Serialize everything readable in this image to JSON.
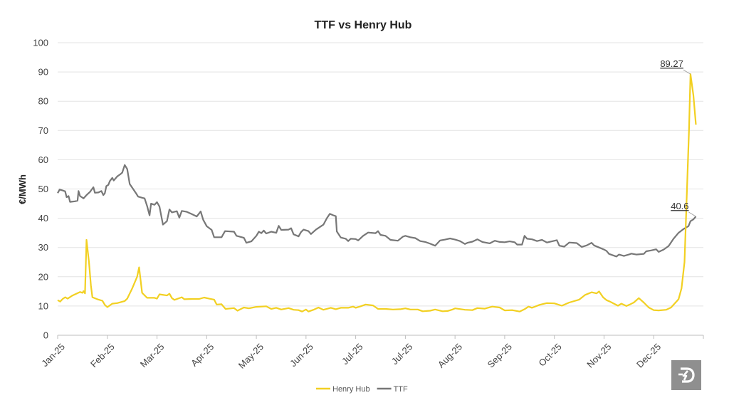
{
  "chart_data": {
    "type": "line",
    "title": "TTF vs Henry Hub",
    "ylabel": "€/MWh",
    "xlabel": "",
    "ylim": [
      0,
      100
    ],
    "yticks": [
      0,
      10,
      20,
      30,
      40,
      50,
      60,
      70,
      80,
      90,
      100
    ],
    "x_tick_labels": [
      "Jan-25",
      "Feb-25",
      "Mar-25",
      "Apr-25",
      "May-25",
      "Jun-25",
      "Jul-25",
      "Jul-25",
      "Aug-25",
      "Sep-25",
      "Oct-25",
      "Nov-25",
      "Dec-25"
    ],
    "grid": true,
    "legend": "bottom",
    "annotations": [
      {
        "series": "Henry Hub",
        "text": "89.27"
      },
      {
        "series": "TTF",
        "text": "40.6"
      }
    ],
    "series": [
      {
        "name": "Henry Hub",
        "color": "#f2d022",
        "points": [
          [
            0.0,
            12
          ],
          [
            0.05,
            11.5
          ],
          [
            0.1,
            12.4
          ],
          [
            0.15,
            13
          ],
          [
            0.2,
            12.5
          ],
          [
            0.3,
            13.6
          ],
          [
            0.45,
            14.8
          ],
          [
            0.5,
            14.5
          ],
          [
            0.52,
            15.1
          ],
          [
            0.55,
            14.3
          ],
          [
            0.58,
            32.6
          ],
          [
            0.63,
            25
          ],
          [
            0.67,
            17
          ],
          [
            0.7,
            13
          ],
          [
            0.8,
            12.3
          ],
          [
            0.9,
            11.8
          ],
          [
            0.95,
            10.4
          ],
          [
            1.0,
            9.6
          ],
          [
            1.1,
            10.8
          ],
          [
            1.2,
            11
          ],
          [
            1.35,
            11.7
          ],
          [
            1.4,
            12.5
          ],
          [
            1.5,
            16
          ],
          [
            1.6,
            20
          ],
          [
            1.64,
            23.2
          ],
          [
            1.7,
            14.5
          ],
          [
            1.8,
            12.8
          ],
          [
            1.95,
            12.8
          ],
          [
            2.0,
            12.5
          ],
          [
            2.05,
            14
          ],
          [
            2.2,
            13.6
          ],
          [
            2.25,
            14.2
          ],
          [
            2.3,
            12.7
          ],
          [
            2.35,
            12.1
          ],
          [
            2.5,
            13
          ],
          [
            2.55,
            12.3
          ],
          [
            2.7,
            12.4
          ],
          [
            2.85,
            12.4
          ],
          [
            2.95,
            12.9
          ],
          [
            3.05,
            12.5
          ],
          [
            3.15,
            12.2
          ],
          [
            3.2,
            10.5
          ],
          [
            3.3,
            10.6
          ],
          [
            3.38,
            9
          ],
          [
            3.55,
            9.3
          ],
          [
            3.62,
            8.4
          ],
          [
            3.75,
            9.5
          ],
          [
            3.85,
            9.2
          ],
          [
            4.0,
            9.7
          ],
          [
            4.2,
            9.9
          ],
          [
            4.3,
            9
          ],
          [
            4.4,
            9.4
          ],
          [
            4.5,
            8.8
          ],
          [
            4.65,
            9.3
          ],
          [
            4.75,
            8.7
          ],
          [
            4.85,
            8.6
          ],
          [
            4.92,
            8.1
          ],
          [
            5.0,
            8.8
          ],
          [
            5.05,
            8.1
          ],
          [
            5.15,
            8.7
          ],
          [
            5.25,
            9.5
          ],
          [
            5.35,
            8.7
          ],
          [
            5.5,
            9.4
          ],
          [
            5.6,
            8.9
          ],
          [
            5.7,
            9.4
          ],
          [
            5.85,
            9.4
          ],
          [
            5.95,
            9.8
          ],
          [
            6.0,
            9.4
          ],
          [
            6.1,
            9.9
          ],
          [
            6.2,
            10.5
          ],
          [
            6.35,
            10.2
          ],
          [
            6.45,
            9
          ],
          [
            6.6,
            9
          ],
          [
            6.75,
            8.8
          ],
          [
            6.9,
            8.9
          ],
          [
            7.0,
            9.2
          ],
          [
            7.1,
            8.8
          ],
          [
            7.25,
            8.8
          ],
          [
            7.35,
            8.2
          ],
          [
            7.5,
            8.4
          ],
          [
            7.6,
            8.8
          ],
          [
            7.75,
            8.2
          ],
          [
            7.85,
            8.3
          ],
          [
            7.95,
            8.8
          ],
          [
            8.0,
            9.2
          ],
          [
            8.2,
            8.7
          ],
          [
            8.35,
            8.6
          ],
          [
            8.45,
            9.3
          ],
          [
            8.6,
            9.1
          ],
          [
            8.75,
            9.8
          ],
          [
            8.9,
            9.5
          ],
          [
            9.0,
            8.5
          ],
          [
            9.15,
            8.6
          ],
          [
            9.3,
            8.1
          ],
          [
            9.4,
            8.9
          ],
          [
            9.48,
            9.8
          ],
          [
            9.55,
            9.4
          ],
          [
            9.7,
            10.4
          ],
          [
            9.85,
            11
          ],
          [
            10.0,
            10.9
          ],
          [
            10.15,
            10.1
          ],
          [
            10.3,
            11.2
          ],
          [
            10.5,
            12.2
          ],
          [
            10.62,
            13.8
          ],
          [
            10.75,
            14.7
          ],
          [
            10.85,
            14.3
          ],
          [
            10.9,
            15
          ],
          [
            10.98,
            13
          ],
          [
            11.05,
            12
          ],
          [
            11.12,
            11.5
          ],
          [
            11.2,
            10.8
          ],
          [
            11.28,
            10.1
          ],
          [
            11.35,
            10.8
          ],
          [
            11.45,
            10
          ],
          [
            11.52,
            10.5
          ],
          [
            11.6,
            11.2
          ],
          [
            11.7,
            12.7
          ],
          [
            11.8,
            11.2
          ],
          [
            11.9,
            9.5
          ],
          [
            12.0,
            8.6
          ],
          [
            12.1,
            8.5
          ],
          [
            12.25,
            8.7
          ],
          [
            12.35,
            9.5
          ],
          [
            12.5,
            12.3
          ],
          [
            12.56,
            16
          ],
          [
            12.62,
            25
          ],
          [
            12.67,
            50
          ],
          [
            12.71,
            70
          ],
          [
            12.74,
            89.27
          ],
          [
            12.8,
            82
          ],
          [
            12.85,
            72
          ]
        ]
      },
      {
        "name": "TTF",
        "color": "#777777",
        "points": [
          [
            0.0,
            48.6
          ],
          [
            0.04,
            49.8
          ],
          [
            0.1,
            49.5
          ],
          [
            0.15,
            49.2
          ],
          [
            0.18,
            47.2
          ],
          [
            0.22,
            47.6
          ],
          [
            0.25,
            45.6
          ],
          [
            0.35,
            45.8
          ],
          [
            0.4,
            46
          ],
          [
            0.42,
            49.3
          ],
          [
            0.45,
            47.6
          ],
          [
            0.52,
            46.8
          ],
          [
            0.58,
            47.9
          ],
          [
            0.65,
            49
          ],
          [
            0.72,
            50.6
          ],
          [
            0.75,
            48.7
          ],
          [
            0.82,
            48.8
          ],
          [
            0.88,
            49.3
          ],
          [
            0.92,
            47.9
          ],
          [
            0.95,
            48.6
          ],
          [
            0.98,
            51
          ],
          [
            1.02,
            51.4
          ],
          [
            1.05,
            52.7
          ],
          [
            1.1,
            53.8
          ],
          [
            1.13,
            52.9
          ],
          [
            1.2,
            54.3
          ],
          [
            1.26,
            55
          ],
          [
            1.3,
            55.6
          ],
          [
            1.35,
            58.2
          ],
          [
            1.4,
            56.8
          ],
          [
            1.45,
            51.7
          ],
          [
            1.52,
            50
          ],
          [
            1.58,
            48.5
          ],
          [
            1.62,
            47.4
          ],
          [
            1.7,
            47
          ],
          [
            1.75,
            46.8
          ],
          [
            1.8,
            44.2
          ],
          [
            1.85,
            41
          ],
          [
            1.88,
            45
          ],
          [
            1.95,
            44.6
          ],
          [
            2.0,
            45.5
          ],
          [
            2.05,
            44
          ],
          [
            2.12,
            37.8
          ],
          [
            2.2,
            39
          ],
          [
            2.25,
            43
          ],
          [
            2.3,
            42
          ],
          [
            2.4,
            42.4
          ],
          [
            2.45,
            40.2
          ],
          [
            2.5,
            42.5
          ],
          [
            2.6,
            42.2
          ],
          [
            2.7,
            41.4
          ],
          [
            2.8,
            40.6
          ],
          [
            2.88,
            42.3
          ],
          [
            2.93,
            39.5
          ],
          [
            3.0,
            37.3
          ],
          [
            3.1,
            36
          ],
          [
            3.15,
            33.5
          ],
          [
            3.3,
            33.5
          ],
          [
            3.37,
            35.6
          ],
          [
            3.55,
            35.4
          ],
          [
            3.6,
            34
          ],
          [
            3.75,
            33.3
          ],
          [
            3.8,
            31.6
          ],
          [
            3.9,
            32.1
          ],
          [
            4.0,
            34
          ],
          [
            4.05,
            35.4
          ],
          [
            4.1,
            34.9
          ],
          [
            4.15,
            35.8
          ],
          [
            4.2,
            34.8
          ],
          [
            4.3,
            35.4
          ],
          [
            4.4,
            35
          ],
          [
            4.45,
            37.4
          ],
          [
            4.5,
            36
          ],
          [
            4.65,
            36.1
          ],
          [
            4.7,
            36.6
          ],
          [
            4.75,
            34.5
          ],
          [
            4.85,
            33.8
          ],
          [
            4.9,
            35.3
          ],
          [
            4.95,
            36.1
          ],
          [
            5.05,
            35.6
          ],
          [
            5.1,
            34.6
          ],
          [
            5.2,
            36.1
          ],
          [
            5.35,
            37.8
          ],
          [
            5.42,
            40
          ],
          [
            5.48,
            41.5
          ],
          [
            5.55,
            41
          ],
          [
            5.6,
            40.7
          ],
          [
            5.62,
            35.5
          ],
          [
            5.7,
            33.4
          ],
          [
            5.8,
            33
          ],
          [
            5.85,
            32.2
          ],
          [
            5.9,
            33
          ],
          [
            6.0,
            32.9
          ],
          [
            6.05,
            32.4
          ],
          [
            6.15,
            34
          ],
          [
            6.25,
            35.1
          ],
          [
            6.4,
            34.9
          ],
          [
            6.45,
            35.6
          ],
          [
            6.5,
            34.3
          ],
          [
            6.6,
            34
          ],
          [
            6.7,
            32.6
          ],
          [
            6.85,
            32.3
          ],
          [
            6.95,
            33.7
          ],
          [
            7.0,
            34
          ],
          [
            7.1,
            33.5
          ],
          [
            7.2,
            33.2
          ],
          [
            7.3,
            32.2
          ],
          [
            7.4,
            31.9
          ],
          [
            7.5,
            31.3
          ],
          [
            7.6,
            30.6
          ],
          [
            7.7,
            32.4
          ],
          [
            7.8,
            32.7
          ],
          [
            7.9,
            33.1
          ],
          [
            8.0,
            32.7
          ],
          [
            8.1,
            32.2
          ],
          [
            8.2,
            31.2
          ],
          [
            8.25,
            31.6
          ],
          [
            8.35,
            32
          ],
          [
            8.45,
            32.8
          ],
          [
            8.55,
            31.9
          ],
          [
            8.7,
            31.4
          ],
          [
            8.8,
            32.3
          ],
          [
            8.9,
            31.9
          ],
          [
            9.0,
            31.8
          ],
          [
            9.1,
            32.1
          ],
          [
            9.2,
            31.8
          ],
          [
            9.25,
            31
          ],
          [
            9.35,
            31
          ],
          [
            9.4,
            34
          ],
          [
            9.45,
            33
          ],
          [
            9.55,
            32.8
          ],
          [
            9.65,
            32.2
          ],
          [
            9.75,
            32.6
          ],
          [
            9.85,
            31.7
          ],
          [
            9.95,
            32.1
          ],
          [
            10.05,
            32.5
          ],
          [
            10.1,
            30.6
          ],
          [
            10.2,
            30.3
          ],
          [
            10.3,
            31.7
          ],
          [
            10.45,
            31.5
          ],
          [
            10.55,
            30.2
          ],
          [
            10.65,
            30.7
          ],
          [
            10.75,
            31.6
          ],
          [
            10.8,
            30.7
          ],
          [
            10.9,
            30
          ],
          [
            11.0,
            29.3
          ],
          [
            11.05,
            28.8
          ],
          [
            11.1,
            27.8
          ],
          [
            11.2,
            27.2
          ],
          [
            11.25,
            26.9
          ],
          [
            11.3,
            27.6
          ],
          [
            11.4,
            27.1
          ],
          [
            11.5,
            27.6
          ],
          [
            11.55,
            27.9
          ],
          [
            11.65,
            27.6
          ],
          [
            11.8,
            27.8
          ],
          [
            11.85,
            28.7
          ],
          [
            11.95,
            29
          ],
          [
            12.05,
            29.4
          ],
          [
            12.1,
            28.5
          ],
          [
            12.2,
            29.3
          ],
          [
            12.3,
            30.5
          ],
          [
            12.4,
            33
          ],
          [
            12.5,
            35
          ],
          [
            12.6,
            36.3
          ],
          [
            12.7,
            37.3
          ],
          [
            12.74,
            39
          ],
          [
            12.8,
            39.6
          ],
          [
            12.85,
            40.6
          ]
        ]
      }
    ]
  }
}
